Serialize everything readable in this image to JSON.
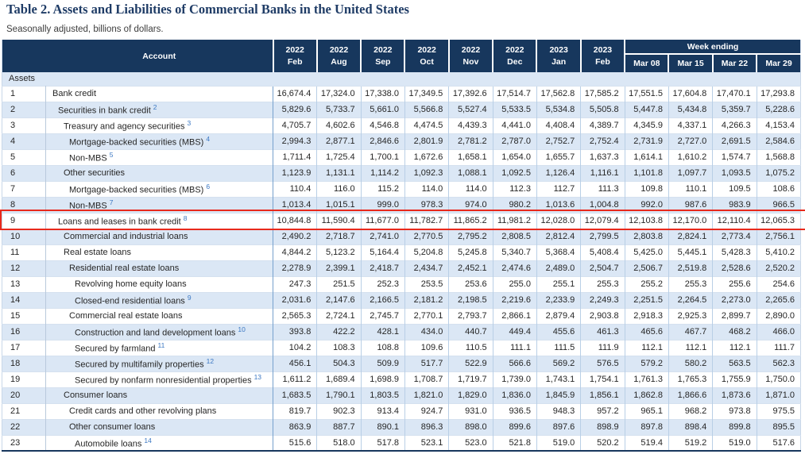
{
  "page": {
    "title": "Table 2. Assets and Liabilities of Commercial Banks in the United States",
    "subtitle": "Seasonally adjusted, billions of dollars."
  },
  "colors": {
    "header_bg": "#17375d",
    "row_alt_bg": "#dbe7f5",
    "highlight_border": "#e8291c",
    "footnote_link": "#3c78c3",
    "title_color": "#1f3c66"
  },
  "highlight": {
    "row_num": 9
  },
  "table": {
    "account_header": "Account",
    "week_ending_label": "Week ending",
    "section_label": "Assets",
    "month_columns": [
      {
        "year": "2022",
        "month": "Feb"
      },
      {
        "year": "2022",
        "month": "Aug"
      },
      {
        "year": "2022",
        "month": "Sep"
      },
      {
        "year": "2022",
        "month": "Oct"
      },
      {
        "year": "2022",
        "month": "Nov"
      },
      {
        "year": "2022",
        "month": "Dec"
      },
      {
        "year": "2023",
        "month": "Jan"
      },
      {
        "year": "2023",
        "month": "Feb"
      }
    ],
    "week_columns": [
      "Mar 08",
      "Mar 15",
      "Mar 22",
      "Mar 29"
    ],
    "rows": [
      {
        "num": 1,
        "label": "Bank credit",
        "footnote": "",
        "indent": 0,
        "highlight": false,
        "values": [
          "16,674.4",
          "17,324.0",
          "17,338.0",
          "17,349.5",
          "17,392.6",
          "17,514.7",
          "17,562.8",
          "17,585.2",
          "17,551.5",
          "17,604.8",
          "17,470.1",
          "17,293.8"
        ]
      },
      {
        "num": 2,
        "label": "Securities in bank credit",
        "footnote": "2",
        "indent": 1,
        "highlight": false,
        "values": [
          "5,829.6",
          "5,733.7",
          "5,661.0",
          "5,566.8",
          "5,527.4",
          "5,533.5",
          "5,534.8",
          "5,505.8",
          "5,447.8",
          "5,434.8",
          "5,359.7",
          "5,228.6"
        ]
      },
      {
        "num": 3,
        "label": "Treasury and agency securities",
        "footnote": "3",
        "indent": 2,
        "highlight": false,
        "values": [
          "4,705.7",
          "4,602.6",
          "4,546.8",
          "4,474.5",
          "4,439.3",
          "4,441.0",
          "4,408.4",
          "4,389.7",
          "4,345.9",
          "4,337.1",
          "4,266.3",
          "4,153.4"
        ]
      },
      {
        "num": 4,
        "label": "Mortgage-backed securities (MBS)",
        "footnote": "4",
        "indent": 3,
        "highlight": false,
        "values": [
          "2,994.3",
          "2,877.1",
          "2,846.6",
          "2,801.9",
          "2,781.2",
          "2,787.0",
          "2,752.7",
          "2,752.4",
          "2,731.9",
          "2,727.0",
          "2,691.5",
          "2,584.6"
        ]
      },
      {
        "num": 5,
        "label": "Non-MBS",
        "footnote": "5",
        "indent": 3,
        "highlight": false,
        "values": [
          "1,711.4",
          "1,725.4",
          "1,700.1",
          "1,672.6",
          "1,658.1",
          "1,654.0",
          "1,655.7",
          "1,637.3",
          "1,614.1",
          "1,610.2",
          "1,574.7",
          "1,568.8"
        ]
      },
      {
        "num": 6,
        "label": "Other securities",
        "footnote": "",
        "indent": 2,
        "highlight": false,
        "values": [
          "1,123.9",
          "1,131.1",
          "1,114.2",
          "1,092.3",
          "1,088.1",
          "1,092.5",
          "1,126.4",
          "1,116.1",
          "1,101.8",
          "1,097.7",
          "1,093.5",
          "1,075.2"
        ]
      },
      {
        "num": 7,
        "label": "Mortgage-backed securities (MBS)",
        "footnote": "6",
        "indent": 3,
        "highlight": false,
        "values": [
          "110.4",
          "116.0",
          "115.2",
          "114.0",
          "114.0",
          "112.3",
          "112.7",
          "111.3",
          "109.8",
          "110.1",
          "109.5",
          "108.6"
        ]
      },
      {
        "num": 8,
        "label": "Non-MBS",
        "footnote": "7",
        "indent": 3,
        "highlight": false,
        "values": [
          "1,013.4",
          "1,015.1",
          "999.0",
          "978.3",
          "974.0",
          "980.2",
          "1,013.6",
          "1,004.8",
          "992.0",
          "987.6",
          "983.9",
          "966.5"
        ]
      },
      {
        "num": 9,
        "label": "Loans and leases in bank credit",
        "footnote": "8",
        "indent": 1,
        "highlight": true,
        "values": [
          "10,844.8",
          "11,590.4",
          "11,677.0",
          "11,782.7",
          "11,865.2",
          "11,981.2",
          "12,028.0",
          "12,079.4",
          "12,103.8",
          "12,170.0",
          "12,110.4",
          "12,065.3"
        ]
      },
      {
        "num": 10,
        "label": "Commercial and industrial loans",
        "footnote": "",
        "indent": 2,
        "highlight": false,
        "values": [
          "2,490.2",
          "2,718.7",
          "2,741.0",
          "2,770.5",
          "2,795.2",
          "2,808.5",
          "2,812.4",
          "2,799.5",
          "2,803.8",
          "2,824.1",
          "2,773.4",
          "2,756.1"
        ]
      },
      {
        "num": 11,
        "label": "Real estate loans",
        "footnote": "",
        "indent": 2,
        "highlight": false,
        "values": [
          "4,844.2",
          "5,123.2",
          "5,164.4",
          "5,204.8",
          "5,245.8",
          "5,340.7",
          "5,368.4",
          "5,408.4",
          "5,425.0",
          "5,445.1",
          "5,428.3",
          "5,410.2"
        ]
      },
      {
        "num": 12,
        "label": "Residential real estate loans",
        "footnote": "",
        "indent": 3,
        "highlight": false,
        "values": [
          "2,278.9",
          "2,399.1",
          "2,418.7",
          "2,434.7",
          "2,452.1",
          "2,474.6",
          "2,489.0",
          "2,504.7",
          "2,506.7",
          "2,519.8",
          "2,528.6",
          "2,520.2"
        ]
      },
      {
        "num": 13,
        "label": "Revolving home equity loans",
        "footnote": "",
        "indent": 4,
        "highlight": false,
        "values": [
          "247.3",
          "251.5",
          "252.3",
          "253.5",
          "253.6",
          "255.0",
          "255.1",
          "255.3",
          "255.2",
          "255.3",
          "255.6",
          "254.6"
        ]
      },
      {
        "num": 14,
        "label": "Closed-end residential loans",
        "footnote": "9",
        "indent": 4,
        "highlight": false,
        "values": [
          "2,031.6",
          "2,147.6",
          "2,166.5",
          "2,181.2",
          "2,198.5",
          "2,219.6",
          "2,233.9",
          "2,249.3",
          "2,251.5",
          "2,264.5",
          "2,273.0",
          "2,265.6"
        ]
      },
      {
        "num": 15,
        "label": "Commercial real estate loans",
        "footnote": "",
        "indent": 3,
        "highlight": false,
        "values": [
          "2,565.3",
          "2,724.1",
          "2,745.7",
          "2,770.1",
          "2,793.7",
          "2,866.1",
          "2,879.4",
          "2,903.8",
          "2,918.3",
          "2,925.3",
          "2,899.7",
          "2,890.0"
        ]
      },
      {
        "num": 16,
        "label": "Construction and land development loans",
        "footnote": "10",
        "indent": 4,
        "highlight": false,
        "values": [
          "393.8",
          "422.2",
          "428.1",
          "434.0",
          "440.7",
          "449.4",
          "455.6",
          "461.3",
          "465.6",
          "467.7",
          "468.2",
          "466.0"
        ]
      },
      {
        "num": 17,
        "label": "Secured by farmland",
        "footnote": "11",
        "indent": 4,
        "highlight": false,
        "values": [
          "104.2",
          "108.3",
          "108.8",
          "109.6",
          "110.5",
          "111.1",
          "111.5",
          "111.9",
          "112.1",
          "112.1",
          "112.1",
          "111.7"
        ]
      },
      {
        "num": 18,
        "label": "Secured by multifamily properties",
        "footnote": "12",
        "indent": 4,
        "highlight": false,
        "values": [
          "456.1",
          "504.3",
          "509.9",
          "517.7",
          "522.9",
          "566.6",
          "569.2",
          "576.5",
          "579.2",
          "580.2",
          "563.5",
          "562.3"
        ]
      },
      {
        "num": 19,
        "label": "Secured by nonfarm nonresidential properties",
        "footnote": "13",
        "indent": 4,
        "highlight": false,
        "values": [
          "1,611.2",
          "1,689.4",
          "1,698.9",
          "1,708.7",
          "1,719.7",
          "1,739.0",
          "1,743.1",
          "1,754.1",
          "1,761.3",
          "1,765.3",
          "1,755.9",
          "1,750.0"
        ]
      },
      {
        "num": 20,
        "label": "Consumer loans",
        "footnote": "",
        "indent": 2,
        "highlight": false,
        "values": [
          "1,683.5",
          "1,790.1",
          "1,803.5",
          "1,821.0",
          "1,829.0",
          "1,836.0",
          "1,845.9",
          "1,856.1",
          "1,862.8",
          "1,866.6",
          "1,873.6",
          "1,871.0"
        ]
      },
      {
        "num": 21,
        "label": "Credit cards and other revolving plans",
        "footnote": "",
        "indent": 3,
        "highlight": false,
        "values": [
          "819.7",
          "902.3",
          "913.4",
          "924.7",
          "931.0",
          "936.5",
          "948.3",
          "957.2",
          "965.1",
          "968.2",
          "973.8",
          "975.5"
        ]
      },
      {
        "num": 22,
        "label": "Other consumer loans",
        "footnote": "",
        "indent": 3,
        "highlight": false,
        "values": [
          "863.9",
          "887.7",
          "890.1",
          "896.3",
          "898.0",
          "899.6",
          "897.6",
          "898.9",
          "897.8",
          "898.4",
          "899.8",
          "895.5"
        ]
      },
      {
        "num": 23,
        "label": "Automobile loans",
        "footnote": "14",
        "indent": 4,
        "highlight": false,
        "values": [
          "515.6",
          "518.0",
          "517.8",
          "523.1",
          "523.0",
          "521.8",
          "519.0",
          "520.2",
          "519.4",
          "519.2",
          "519.0",
          "517.6"
        ]
      }
    ]
  }
}
